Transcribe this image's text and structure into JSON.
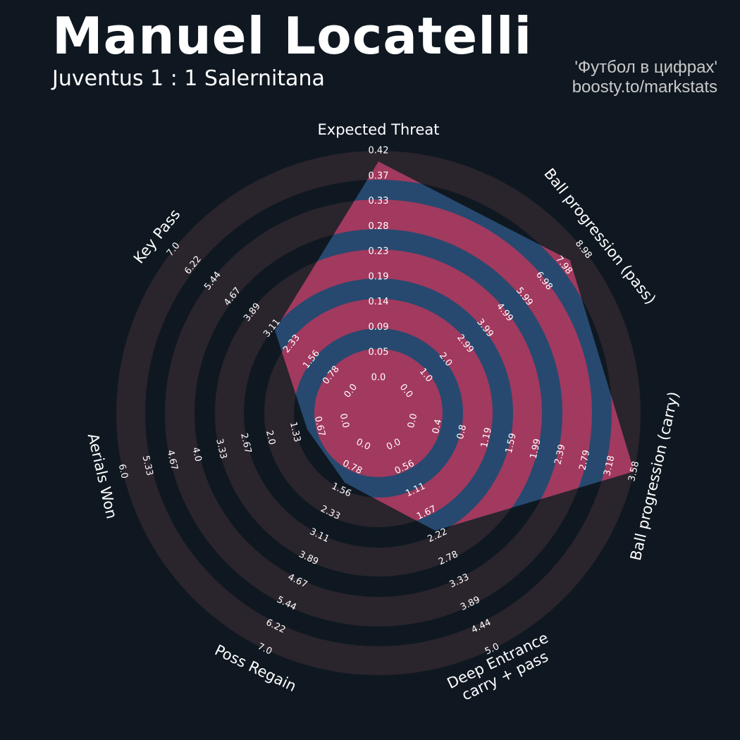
{
  "header": {
    "title": "Manuel Locatelli",
    "subtitle": "Juventus 1 : 1 Salernitana",
    "credit_line1": "'Футбол в цифрах'",
    "credit_line2": "boosty.to/markstats"
  },
  "chart_data": {
    "type": "radar",
    "colors": {
      "background": "#0f1821",
      "outer_ring": "#2a242c",
      "polygon": "#27496f",
      "polygon_ring": "#a2395e",
      "text": "#ffffff"
    },
    "axes": [
      {
        "label": "Expected Threat",
        "min": 0,
        "max": 0.42,
        "value": 0.4,
        "ticks": [
          "0.0",
          "0.05",
          "0.09",
          "0.14",
          "0.19",
          "0.23",
          "0.28",
          "0.33",
          "0.37",
          "0.42"
        ]
      },
      {
        "label": "Ball progression (pass)",
        "min": 0,
        "max": 8.98,
        "value": 8.3,
        "ticks": [
          "0.0",
          "1.0",
          "2.0",
          "2.99",
          "3.99",
          "4.99",
          "5.99",
          "6.98",
          "7.98",
          "8.98"
        ]
      },
      {
        "label": "Ball progression (carry)",
        "min": 0,
        "max": 3.58,
        "value": 3.58,
        "ticks": [
          "0.0",
          "0.4",
          "0.8",
          "1.19",
          "1.59",
          "1.99",
          "2.39",
          "2.79",
          "3.18",
          "3.58"
        ]
      },
      {
        "label": "Deep Entrance\ncarry + pass",
        "min": 0,
        "max": 5.0,
        "value": 2.1,
        "ticks": [
          "0.0",
          "0.56",
          "1.11",
          "1.67",
          "2.22",
          "2.78",
          "3.33",
          "3.89",
          "4.44",
          "5.0"
        ]
      },
      {
        "label": "Poss Regain",
        "min": 0,
        "max": 7.0,
        "value": 1.3,
        "ticks": [
          "0.0",
          "0.78",
          "1.56",
          "2.33",
          "3.11",
          "3.89",
          "4.67",
          "5.44",
          "6.22",
          "7.0"
        ]
      },
      {
        "label": "Aerials Won",
        "min": 0,
        "max": 6.0,
        "value": 1.0,
        "ticks": [
          "0.0",
          "0.67",
          "1.33",
          "2.0",
          "2.67",
          "3.33",
          "4.0",
          "4.67",
          "5.33",
          "6.0"
        ]
      },
      {
        "label": "Key Pass",
        "min": 0,
        "max": 7.0,
        "value": 3.0,
        "ticks": [
          "0.0",
          "0.78",
          "1.56",
          "2.33",
          "3.11",
          "3.89",
          "4.67",
          "5.44",
          "6.22",
          "7.0"
        ]
      }
    ]
  }
}
